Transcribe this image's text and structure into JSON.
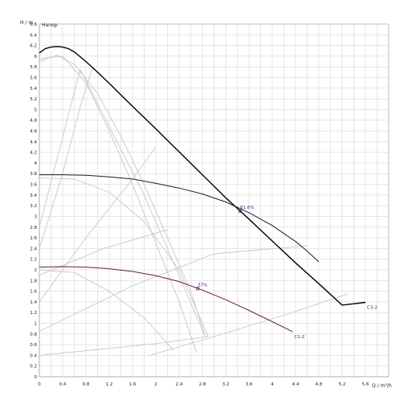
{
  "chart_data": {
    "type": "line",
    "ylabel": "H / m",
    "legend_title": "Напор",
    "xlabel": "Q / m³/h",
    "xlim": [
      0,
      6
    ],
    "ylim": [
      0,
      6.6
    ],
    "x_ticks": [
      "0",
      "0.4",
      "0.8",
      "1.2",
      "1.6",
      "2",
      "2.4",
      "2.8",
      "3.2",
      "3.6",
      "4",
      "4.4",
      "4.8",
      "5.2",
      "5.6"
    ],
    "y_ticks": [
      "0",
      "0.2",
      "0.4",
      "0.6",
      "0.8",
      "1",
      "1.2",
      "1.4",
      "1.6",
      "1.8",
      "2",
      "2.2",
      "2.4",
      "2.6",
      "2.8",
      "3",
      "3.2",
      "3.4",
      "3.6",
      "3.8",
      "4",
      "4.2",
      "4.4",
      "4.6",
      "4.8",
      "5",
      "5.2",
      "5.4",
      "5.6",
      "5.8",
      "6",
      "6.2",
      "6.4",
      "6.6"
    ],
    "series": [
      {
        "name": "C3-2",
        "color": "#000000",
        "x": [
          0,
          0.1,
          0.2,
          0.3,
          0.4,
          0.5,
          0.6,
          0.8,
          1.0,
          1.2,
          1.6,
          2.0,
          2.4,
          2.8,
          3.2,
          3.6,
          4.0,
          4.4,
          4.8,
          5.2,
          5.6
        ],
        "y": [
          6.06,
          6.14,
          6.17,
          6.18,
          6.17,
          6.14,
          6.08,
          5.9,
          5.7,
          5.49,
          5.06,
          4.64,
          4.21,
          3.78,
          3.35,
          2.95,
          2.54,
          2.13,
          1.74,
          1.34,
          1.39
        ]
      },
      {
        "name": "",
        "color": "#1a1a3a",
        "x": [
          0,
          0.4,
          0.8,
          1.2,
          1.6,
          2.0,
          2.4,
          2.8,
          3.2,
          3.6,
          4.0,
          4.4,
          4.6,
          4.8
        ],
        "y": [
          3.78,
          3.78,
          3.77,
          3.74,
          3.7,
          3.62,
          3.53,
          3.42,
          3.27,
          3.07,
          2.83,
          2.53,
          2.35,
          2.15
        ]
      },
      {
        "name": "C1-2",
        "color": "#6a1a4a",
        "x": [
          0,
          0.4,
          0.8,
          1.2,
          1.6,
          2.0,
          2.4,
          2.8,
          3.2,
          3.6,
          4.0,
          4.35
        ],
        "y": [
          2.05,
          2.06,
          2.05,
          2.02,
          1.97,
          1.89,
          1.78,
          1.62,
          1.44,
          1.24,
          1.03,
          0.84
        ]
      }
    ],
    "annotations": [
      {
        "text": "61.6%",
        "x": 3.45,
        "y": 3.1
      },
      {
        "text": "57%",
        "x": 2.72,
        "y": 1.65
      }
    ],
    "grid": true
  }
}
